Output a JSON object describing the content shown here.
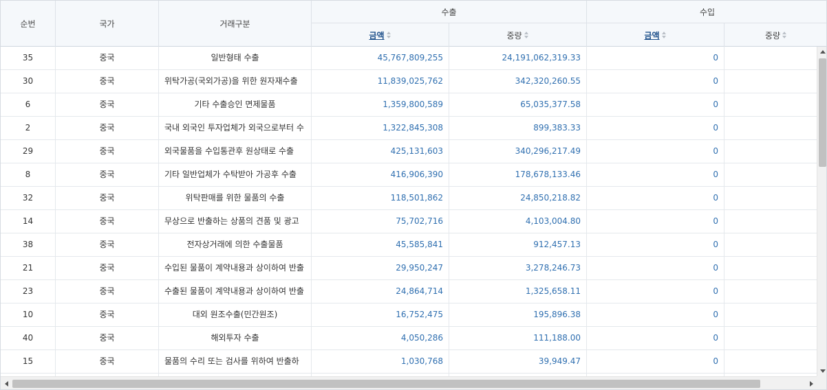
{
  "columns": {
    "seq": "순번",
    "country": "국가",
    "trade_type": "거래구분",
    "export_group": "수출",
    "import_group": "수입",
    "export_amount": "금액",
    "export_weight": "중량",
    "import_amount": "금액",
    "import_weight": "중량"
  },
  "sort_icon": "sort-updown-icon",
  "colors": {
    "header_bg": "#f5f8fb",
    "number_text": "#2f6fb0",
    "link_header": "#1d4f8a"
  },
  "rows": [
    {
      "seq": "35",
      "country": "중국",
      "trade_type": "일반형태 수출",
      "export_amount": "45,767,809,255",
      "export_weight": "24,191,062,319.33",
      "import_amount": "0",
      "import_weight": ""
    },
    {
      "seq": "30",
      "country": "중국",
      "trade_type": "위탁가공(국외가공)을 위한 원자재수출",
      "export_amount": "11,839,025,762",
      "export_weight": "342,320,260.55",
      "import_amount": "0",
      "import_weight": ""
    },
    {
      "seq": "6",
      "country": "중국",
      "trade_type": "기타 수출승인 면제물품",
      "export_amount": "1,359,800,589",
      "export_weight": "65,035,377.58",
      "import_amount": "0",
      "import_weight": ""
    },
    {
      "seq": "2",
      "country": "중국",
      "trade_type": "국내 외국인 투자업체가 외국으로부터 수",
      "export_amount": "1,322,845,308",
      "export_weight": "899,383.33",
      "import_amount": "0",
      "import_weight": ""
    },
    {
      "seq": "29",
      "country": "중국",
      "trade_type": "외국물품을 수입통관후 원상태로 수출",
      "export_amount": "425,131,603",
      "export_weight": "340,296,217.49",
      "import_amount": "0",
      "import_weight": ""
    },
    {
      "seq": "8",
      "country": "중국",
      "trade_type": "기타 일반업체가 수탁받아 가공후 수출",
      "export_amount": "416,906,390",
      "export_weight": "178,678,133.46",
      "import_amount": "0",
      "import_weight": ""
    },
    {
      "seq": "32",
      "country": "중국",
      "trade_type": "위탁판매를 위한 물품의 수출",
      "export_amount": "118,501,862",
      "export_weight": "24,850,218.82",
      "import_amount": "0",
      "import_weight": ""
    },
    {
      "seq": "14",
      "country": "중국",
      "trade_type": "무상으로 반출하는 상품의 견품 및 광고",
      "export_amount": "75,702,716",
      "export_weight": "4,103,004.80",
      "import_amount": "0",
      "import_weight": ""
    },
    {
      "seq": "38",
      "country": "중국",
      "trade_type": "전자상거래에 의한 수출물품",
      "export_amount": "45,585,841",
      "export_weight": "912,457.13",
      "import_amount": "0",
      "import_weight": ""
    },
    {
      "seq": "21",
      "country": "중국",
      "trade_type": "수입된 물품이 계약내용과 상이하여 반출",
      "export_amount": "29,950,247",
      "export_weight": "3,278,246.73",
      "import_amount": "0",
      "import_weight": ""
    },
    {
      "seq": "23",
      "country": "중국",
      "trade_type": "수출된 물품이 계약내용과 상이하여 반출",
      "export_amount": "24,864,714",
      "export_weight": "1,325,658.11",
      "import_amount": "0",
      "import_weight": ""
    },
    {
      "seq": "10",
      "country": "중국",
      "trade_type": "대외 원조수출(민간원조)",
      "export_amount": "16,752,475",
      "export_weight": "195,896.38",
      "import_amount": "0",
      "import_weight": ""
    },
    {
      "seq": "40",
      "country": "중국",
      "trade_type": "해외투자 수출",
      "export_amount": "4,050,286",
      "export_weight": "111,188.00",
      "import_amount": "0",
      "import_weight": ""
    },
    {
      "seq": "15",
      "country": "중국",
      "trade_type": "물품의 수리 또는 검사를 위하여 반출하",
      "export_amount": "1,030,768",
      "export_weight": "39,949.47",
      "import_amount": "0",
      "import_weight": ""
    },
    {
      "seq": "",
      "country": "",
      "trade_type": "",
      "export_amount": "",
      "export_weight": "",
      "import_amount": "",
      "import_weight": ""
    }
  ]
}
